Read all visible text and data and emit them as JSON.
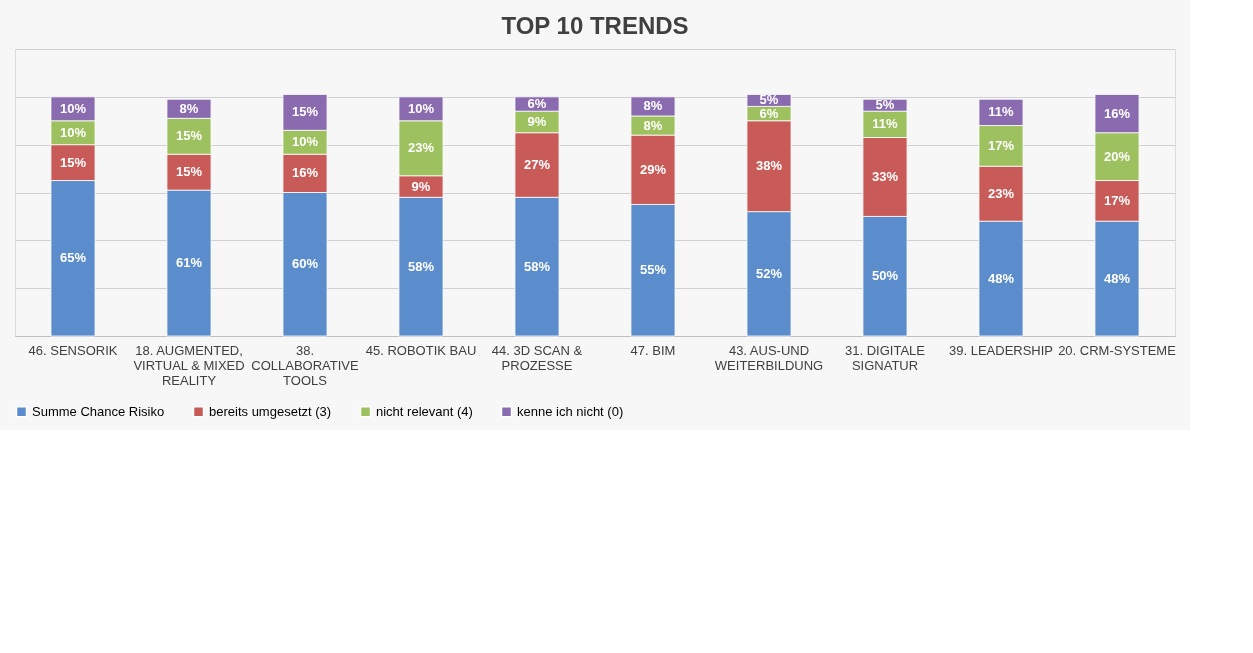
{
  "chart_data": {
    "type": "bar",
    "title": "TOP 10 TRENDS",
    "stacked": true,
    "categories": [
      "46. SENSORIK",
      "18. AUGMENTED, VIRTUAL & MIXED REALITY",
      "38. COLLABORATIVE TOOLS",
      "45. ROBOTIK BAU",
      "44. 3D SCAN & PROZESSE",
      "47. BIM",
      "43. AUS-UND WEITERBILDUNG",
      "31. DIGITALE SIGNATUR",
      "39. LEADERSHIP",
      "20. CRM-SYSTEME"
    ],
    "series": [
      {
        "name": "Summe Chance Risiko",
        "color": "#5b8ccb",
        "values": [
          65,
          61,
          60,
          58,
          58,
          55,
          52,
          50,
          48,
          48
        ],
        "value_labels": [
          "65%",
          "61%",
          "60%",
          "58%",
          "58%",
          "55%",
          "52%",
          "50%",
          "48%",
          "48%"
        ]
      },
      {
        "name": "bereits umgesetzt (3)",
        "color": "#c85a57",
        "values": [
          15,
          15,
          16,
          9,
          27,
          29,
          38,
          33,
          23,
          17
        ],
        "value_labels": [
          "15%",
          "15%",
          "16%",
          "9%",
          "27%",
          "29%",
          "38%",
          "33%",
          "23%",
          "17%"
        ]
      },
      {
        "name": "nicht relevant (4)",
        "color": "#9dc15e",
        "values": [
          10,
          15,
          10,
          23,
          9,
          8,
          6,
          11,
          17,
          20
        ],
        "value_labels": [
          "10%",
          "15%",
          "10%",
          "23%",
          "9%",
          "8%",
          "6%",
          "11%",
          "17%",
          "20%"
        ]
      },
      {
        "name": "kenne ich nicht (0)",
        "color": "#8a6bb0",
        "values": [
          10,
          8,
          15,
          10,
          6,
          8,
          5,
          5,
          11,
          16
        ],
        "value_labels": [
          "10%",
          "8%",
          "15%",
          "10%",
          "6%",
          "8%",
          "5%",
          "5%",
          "11%",
          "16%"
        ]
      }
    ],
    "ylim": [
      0,
      120
    ],
    "yticks": [
      {
        "value": 0,
        "label": null
      },
      {
        "value": 20,
        "label": null
      },
      {
        "value": 40,
        "label": null
      },
      {
        "value": 60,
        "label": null
      },
      {
        "value": 80,
        "label": null
      },
      {
        "value": 100,
        "label": null
      },
      {
        "value": 120,
        "label": null
      }
    ],
    "grid": "y",
    "legend": "bottom",
    "tick_labels": "x"
  }
}
